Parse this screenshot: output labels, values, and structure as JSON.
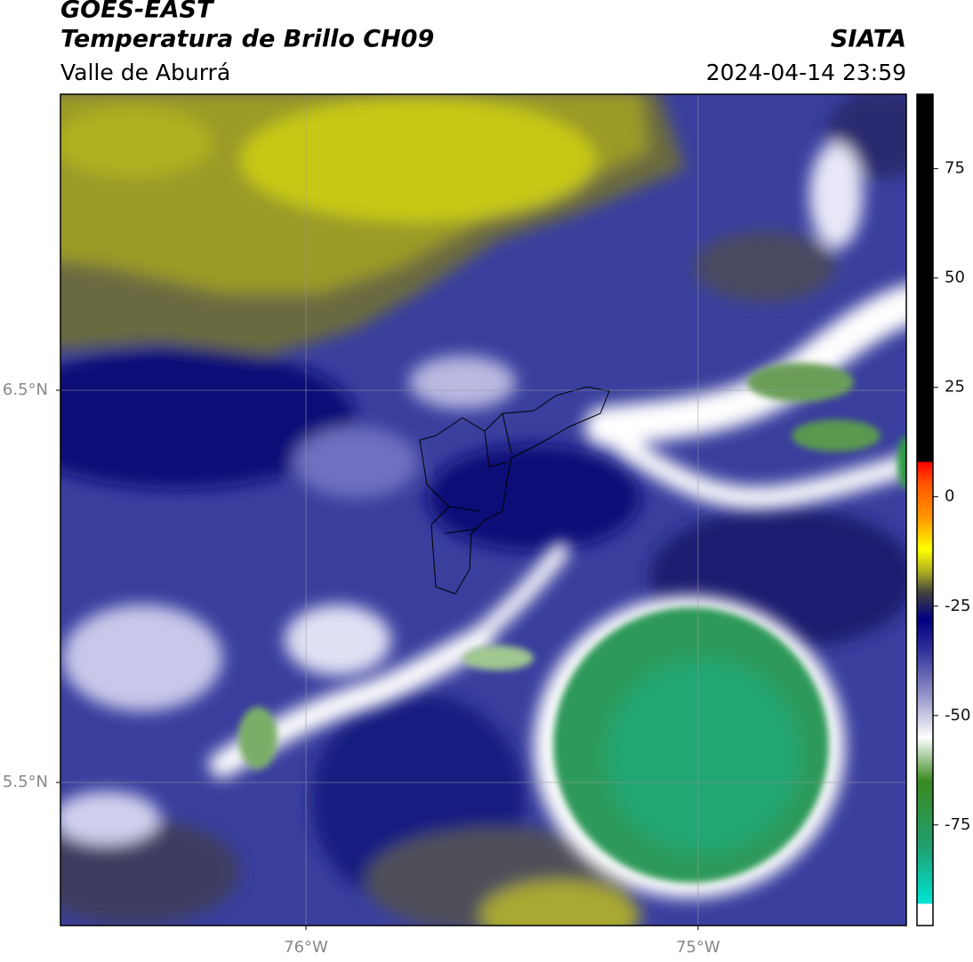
{
  "chart_data": {
    "type": "map",
    "title": "GOES-EAST",
    "subtitle": "Temperatura de Brillo CH09",
    "region": "Valle de Aburrá",
    "source": "SIATA",
    "timestamp": "2024-04-14 23:59",
    "xlim": [
      -76.626,
      -74.469
    ],
    "ylim": [
      5.135,
      7.255
    ],
    "xticks": [
      {
        "value": -76,
        "label": "76°W"
      },
      {
        "value": -75,
        "label": "75°W"
      }
    ],
    "yticks": [
      {
        "value": 6.5,
        "label": "6.5°N"
      },
      {
        "value": 5.5,
        "label": "5.5°N"
      }
    ],
    "grid": true,
    "colorbar": {
      "clim": [
        -98,
        92
      ],
      "ticks": [
        75,
        50,
        25,
        0,
        -25,
        -50,
        -75
      ],
      "colormap": [
        {
          "value": -98,
          "color": "#ffffff"
        },
        {
          "value": -93,
          "color": "#ffffff"
        },
        {
          "value": -93,
          "color": "#00e5d5"
        },
        {
          "value": -80,
          "color": "#20a070"
        },
        {
          "value": -65,
          "color": "#3a8a20"
        },
        {
          "value": -55,
          "color": "#ffffff"
        },
        {
          "value": -45,
          "color": "#9090c8"
        },
        {
          "value": -35,
          "color": "#30309a"
        },
        {
          "value": -28,
          "color": "#000080"
        },
        {
          "value": -22,
          "color": "#404040"
        },
        {
          "value": -17,
          "color": "#b0b020"
        },
        {
          "value": -12,
          "color": "#ffff00"
        },
        {
          "value": -5,
          "color": "#ff9900"
        },
        {
          "value": 3,
          "color": "#ff5500"
        },
        {
          "value": 8,
          "color": "#ff0000"
        },
        {
          "value": 8,
          "color": "#000000"
        },
        {
          "value": 92,
          "color": "#000000"
        }
      ]
    }
  }
}
